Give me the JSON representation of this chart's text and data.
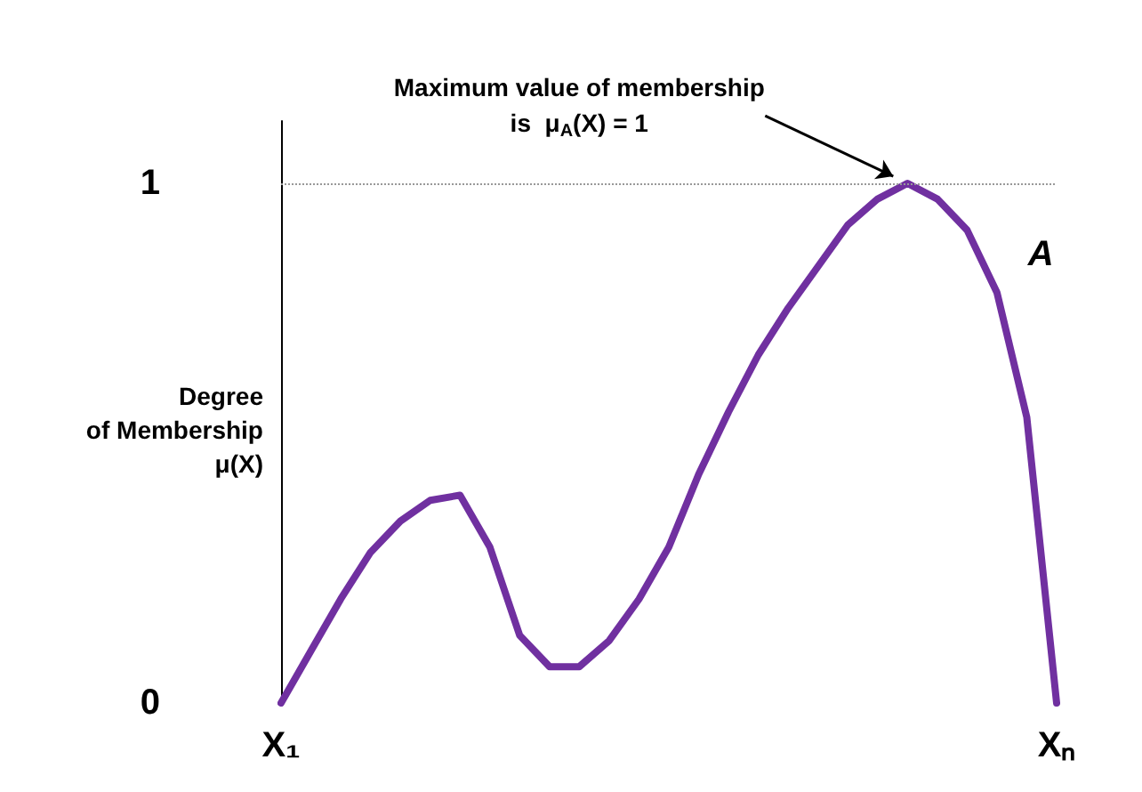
{
  "chart_data": {
    "type": "line",
    "ylabel": "Degree\nof Membership\nμ(X)",
    "categories": [
      "X₁",
      null,
      null,
      null,
      null,
      null,
      null,
      null,
      null,
      null,
      null,
      null,
      null,
      null,
      null,
      null,
      null,
      null,
      null,
      null,
      null,
      null,
      null,
      null,
      null,
      null,
      "Xₙ"
    ],
    "series": [
      {
        "name": "A",
        "color": "#7030a0",
        "values": [
          0,
          0.1,
          0.2,
          0.29,
          0.35,
          0.39,
          0.4,
          0.3,
          0.13,
          0.07,
          0.07,
          0.12,
          0.2,
          0.3,
          0.44,
          0.56,
          0.67,
          0.76,
          0.84,
          0.92,
          0.97,
          1.0,
          0.97,
          0.91,
          0.79,
          0.55,
          0
        ]
      }
    ],
    "ylim": [
      0,
      1.12
    ],
    "yticks": [
      0,
      1
    ],
    "ref_lines": [
      {
        "axis": "y",
        "value": 1,
        "line_style": "dotted",
        "color": "#999999"
      }
    ],
    "annotations": [
      {
        "text": "Maximum value of membership\nis  μ$_{A}$(X) = 1",
        "y": 1
      }
    ],
    "grid": false,
    "legend": false,
    "marker": "none",
    "line_style": "solid"
  }
}
